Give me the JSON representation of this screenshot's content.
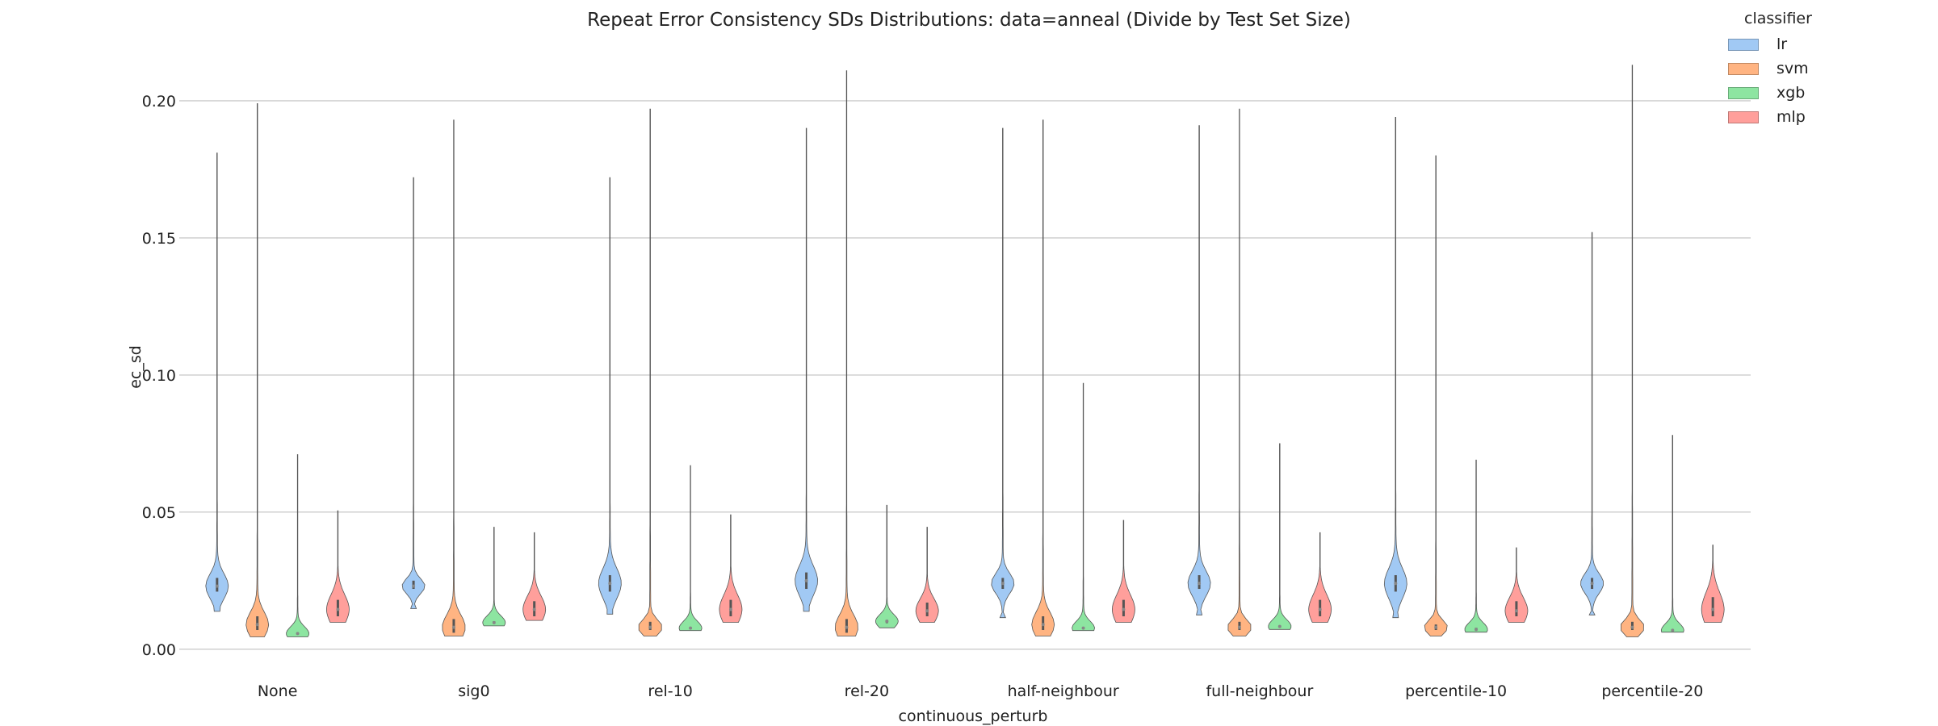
{
  "chart_data": {
    "type": "violin",
    "title": "Repeat Error Consistency SDs Distributions: data=anneal (Divide by Test Set Size)",
    "xlabel": "continuous_perturb",
    "ylabel": "ec_sd",
    "ylim": [
      -0.003,
      0.225
    ],
    "yticks": [
      "0.00",
      "0.05",
      "0.10",
      "0.15",
      "0.20"
    ],
    "grid": "horizontal",
    "legend_placement": "top-right",
    "legend_title": "classifier",
    "categories": [
      "None",
      "sig0",
      "rel-10",
      "rel-20",
      "half-neighbour",
      "full-neighbour",
      "percentile-10",
      "percentile-20"
    ],
    "series": [
      {
        "name": "lr",
        "color": "#a1c9f4",
        "min": [
          0.0138,
          0.0148,
          0.0128,
          0.0138,
          0.0115,
          0.0125,
          0.0115,
          0.0125
        ],
        "max": [
          0.181,
          0.172,
          0.172,
          0.19,
          0.19,
          0.191,
          0.194,
          0.152
        ],
        "q1": [
          0.021,
          0.022,
          0.021,
          0.022,
          0.022,
          0.022,
          0.021,
          0.022
        ],
        "median": [
          0.023,
          0.023,
          0.024,
          0.025,
          0.024,
          0.024,
          0.024,
          0.024
        ],
        "q3": [
          0.026,
          0.025,
          0.027,
          0.028,
          0.026,
          0.027,
          0.027,
          0.026
        ]
      },
      {
        "name": "svm",
        "color": "#ffb482",
        "min": [
          0.0045,
          0.0048,
          0.0048,
          0.0048,
          0.0048,
          0.0048,
          0.0048,
          0.0045
        ],
        "max": [
          0.199,
          0.193,
          0.197,
          0.211,
          0.193,
          0.197,
          0.18,
          0.213
        ],
        "q1": [
          0.007,
          0.006,
          0.007,
          0.006,
          0.007,
          0.007,
          0.007,
          0.007
        ],
        "median": [
          0.009,
          0.008,
          0.008,
          0.008,
          0.009,
          0.008,
          0.008,
          0.008
        ],
        "q3": [
          0.012,
          0.011,
          0.01,
          0.011,
          0.012,
          0.01,
          0.009,
          0.01
        ]
      },
      {
        "name": "xgb",
        "color": "#8de5a1",
        "min": [
          0.0045,
          0.0085,
          0.0068,
          0.0078,
          0.0068,
          0.0072,
          0.0062,
          0.0062
        ],
        "max": [
          0.071,
          0.0445,
          0.067,
          0.0525,
          0.097,
          0.075,
          0.069,
          0.078
        ],
        "q1": [
          0.0055,
          0.0095,
          0.0075,
          0.0095,
          0.0075,
          0.008,
          0.007,
          0.0068
        ],
        "median": [
          0.0057,
          0.0097,
          0.0077,
          0.0102,
          0.0077,
          0.0083,
          0.0072,
          0.0069
        ],
        "q3": [
          0.006,
          0.0102,
          0.008,
          0.0107,
          0.008,
          0.0086,
          0.0078,
          0.0072
        ]
      },
      {
        "name": "mlp",
        "color": "#ff9f9b",
        "min": [
          0.0098,
          0.0105,
          0.0098,
          0.0098,
          0.0098,
          0.0098,
          0.0098,
          0.0098
        ],
        "max": [
          0.0505,
          0.0425,
          0.049,
          0.0445,
          0.047,
          0.0425,
          0.037,
          0.038
        ],
        "q1": [
          0.012,
          0.012,
          0.012,
          0.012,
          0.012,
          0.012,
          0.012,
          0.012
        ],
        "median": [
          0.0145,
          0.0145,
          0.0145,
          0.014,
          0.0145,
          0.0145,
          0.014,
          0.0145
        ],
        "q3": [
          0.018,
          0.0175,
          0.018,
          0.017,
          0.018,
          0.018,
          0.0175,
          0.019
        ]
      }
    ]
  }
}
